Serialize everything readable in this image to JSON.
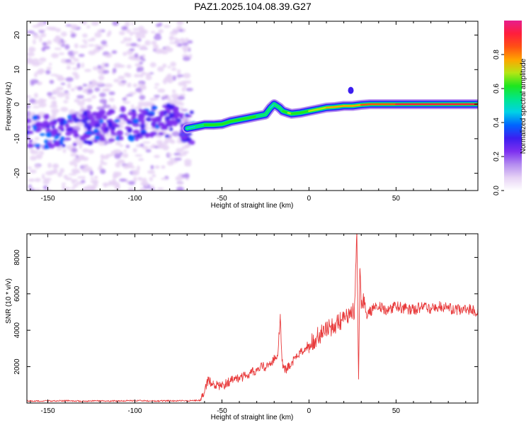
{
  "title": "PAZ1.2025.104.08.39.G27",
  "colors": {
    "snr_line": "#e8393a",
    "colormap": [
      "#ffffff",
      "#e6d2f5",
      "#b48cf0",
      "#7d2ff0",
      "#3c1ef0",
      "#0064ff",
      "#00d2e6",
      "#00e68c",
      "#1ee61e",
      "#b4e614",
      "#ffa500",
      "#ff5014",
      "#ff1e3c",
      "#e61e8c"
    ]
  },
  "chart_data": [
    {
      "type": "heatmap",
      "xlabel": "Height of straight line (km)",
      "ylabel": "Frequency (Hz)",
      "xlim": [
        -162,
        97
      ],
      "ylim": [
        -25,
        24
      ],
      "xticks": [
        -150,
        -100,
        -50,
        0,
        50
      ],
      "yticks": [
        -20,
        -10,
        0,
        10,
        20
      ],
      "colorbar": {
        "label": "Normalized spectral amplitude",
        "range": [
          0,
          1
        ],
        "ticks": [
          0.0,
          0.2,
          0.4,
          0.6,
          0.8
        ]
      },
      "ridge": {
        "x": [
          -162,
          -150,
          -140,
          -130,
          -120,
          -110,
          -100,
          -90,
          -80,
          -70,
          -65,
          -60,
          -55,
          -50,
          -45,
          -40,
          -35,
          -30,
          -25,
          -22,
          -20,
          -17,
          -15,
          -12,
          -10,
          -5,
          0,
          5,
          10,
          15,
          20,
          25,
          30,
          35,
          40,
          50,
          60,
          70,
          80,
          90,
          97
        ],
        "y": [
          -8.5,
          -8,
          -7.5,
          -7,
          -6.5,
          -6,
          -5.8,
          -5.5,
          -4.8,
          -7,
          -6.5,
          -6,
          -6,
          -5.8,
          -5,
          -4.5,
          -4,
          -3.5,
          -3,
          -1,
          0,
          -1,
          -2,
          -2.5,
          -2.8,
          -2.5,
          -2,
          -1.5,
          -1,
          -0.8,
          -0.5,
          -0.5,
          -0.2,
          0,
          0,
          0,
          0,
          0,
          0,
          0,
          0
        ],
        "amplitude": [
          0.3,
          0.3,
          0.3,
          0.35,
          0.4,
          0.35,
          0.3,
          0.3,
          0.3,
          0.35,
          0.5,
          0.6,
          0.65,
          0.6,
          0.6,
          0.65,
          0.6,
          0.6,
          0.55,
          0.45,
          0.5,
          0.55,
          0.6,
          0.65,
          0.7,
          0.6,
          0.65,
          0.7,
          0.75,
          0.75,
          0.75,
          0.75,
          0.8,
          0.85,
          0.85,
          0.9,
          0.9,
          0.9,
          0.9,
          0.9,
          0.9
        ]
      }
    },
    {
      "type": "line",
      "xlabel": "Height of straight line (km)",
      "ylabel": "SNR (10 * v/v)",
      "xlim": [
        -162,
        97
      ],
      "ylim": [
        0,
        9300
      ],
      "xticks": [
        -150,
        -100,
        -50,
        0,
        50
      ],
      "yticks": [
        2000,
        4000,
        6000,
        8000
      ],
      "series": [
        {
          "x": [
            -162,
            -150,
            -140,
            -130,
            -120,
            -110,
            -100,
            -90,
            -80,
            -70,
            -62,
            -60,
            -58,
            -55,
            -52,
            -50,
            -47,
            -45,
            -42,
            -40,
            -37,
            -35,
            -32,
            -30,
            -27,
            -25,
            -22,
            -20,
            -18,
            -16.5,
            -15.5,
            -14,
            -12,
            -10,
            -7,
            -5,
            -2,
            0,
            3,
            5,
            8,
            10,
            13,
            15,
            18,
            20,
            22,
            24,
            26,
            27.5,
            28.5,
            29.2,
            30,
            31,
            32,
            33,
            35,
            37,
            40,
            45,
            50,
            55,
            60,
            65,
            70,
            75,
            80,
            85,
            90,
            97
          ],
          "y": [
            120,
            110,
            130,
            100,
            120,
            110,
            130,
            110,
            120,
            120,
            150,
            600,
            1200,
            1050,
            950,
            900,
            1100,
            1200,
            1350,
            1300,
            1500,
            1600,
            1700,
            1750,
            2000,
            1950,
            2200,
            2400,
            2600,
            4650,
            2300,
            1800,
            2000,
            2200,
            2500,
            2700,
            3000,
            3200,
            3500,
            3700,
            3800,
            4000,
            4200,
            4300,
            4500,
            4700,
            4800,
            5000,
            5100,
            9200,
            1400,
            7300,
            5200,
            5600,
            5400,
            4900,
            5000,
            5200,
            5300,
            5100,
            5300,
            5200,
            5100,
            5300,
            5200,
            5300,
            5200,
            5100,
            5200,
            5000
          ]
        }
      ]
    }
  ]
}
